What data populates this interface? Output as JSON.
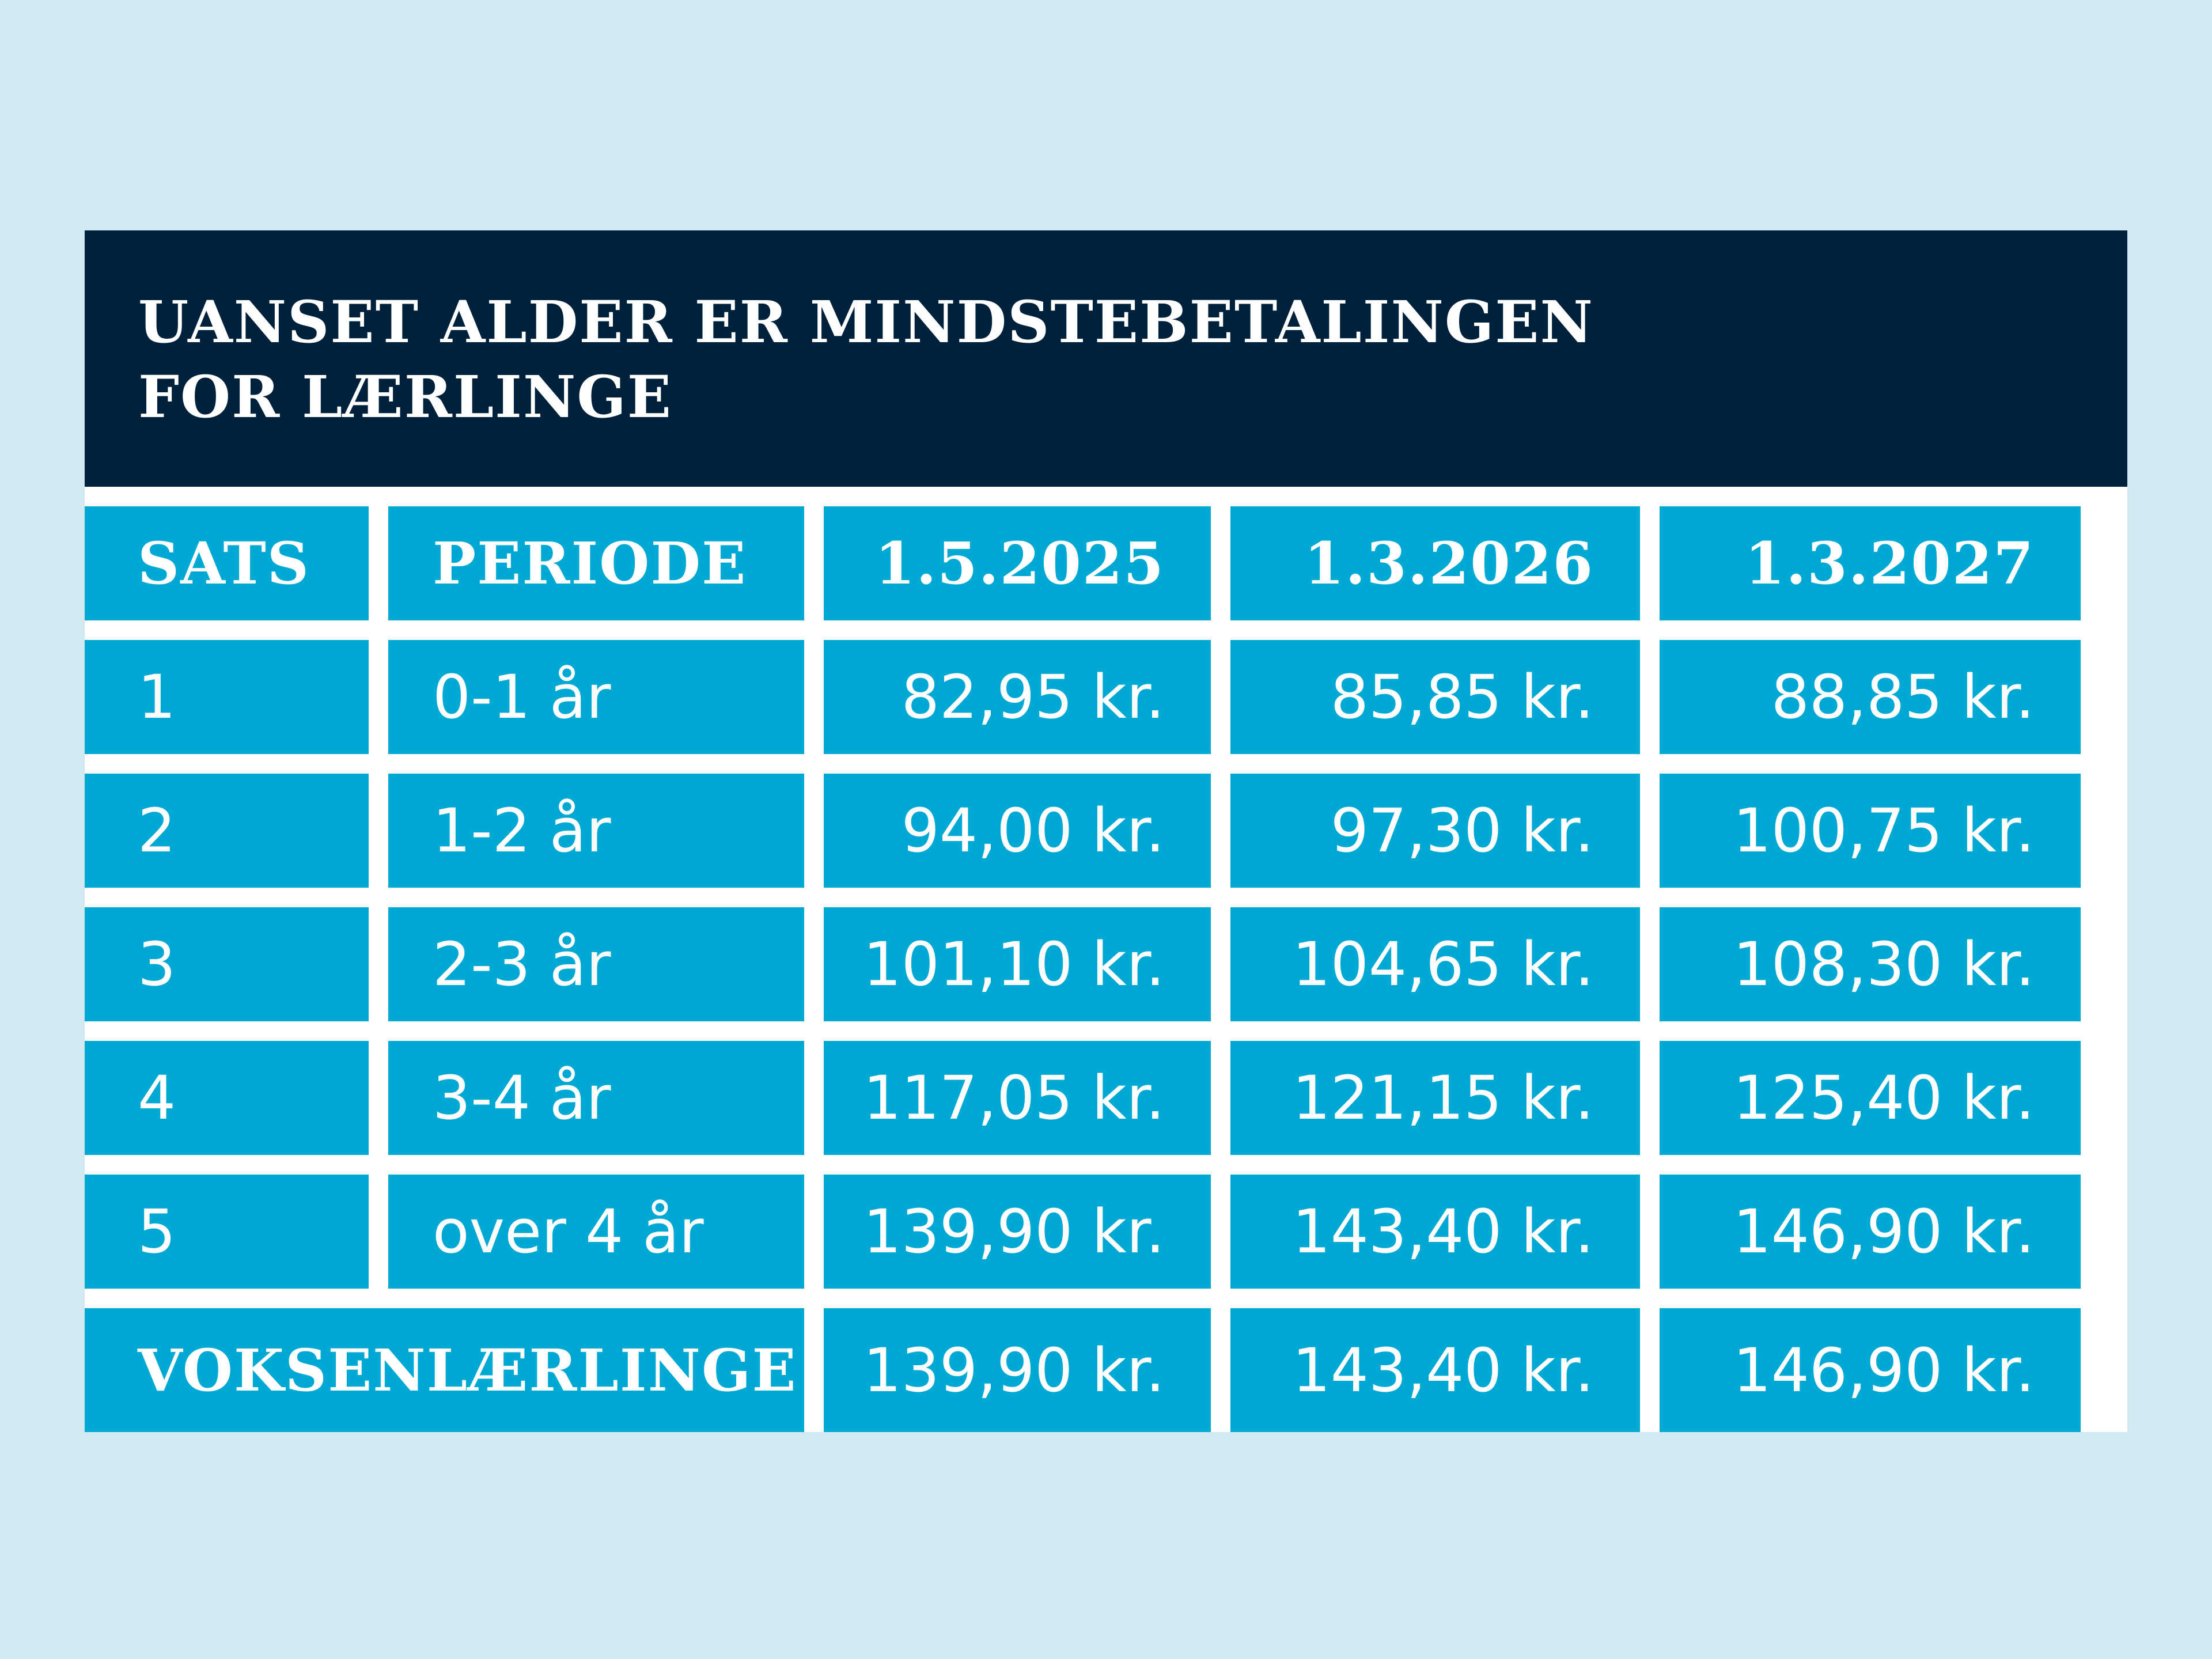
{
  "title": "UANSET ALDER ER MINDSTEBETALINGEN\nFOR LÆRLINGE",
  "colors": {
    "background": "#d1e9f0",
    "header_bg": "#00213c",
    "cell_bg": "#00a9d4",
    "text": "#ffffff"
  },
  "table": {
    "columns": [
      "SATS",
      "PERIODE",
      "1.5.2025",
      "1.3.2026",
      "1.3.2027"
    ],
    "rows": [
      {
        "sats": "1",
        "periode": "0-1 år",
        "v2025": "82,95 kr.",
        "v2026": "85,85 kr.",
        "v2027": "88,85 kr."
      },
      {
        "sats": "2",
        "periode": "1-2 år",
        "v2025": "94,00 kr.",
        "v2026": "97,30 kr.",
        "v2027": "100,75 kr."
      },
      {
        "sats": "3",
        "periode": "2-3 år",
        "v2025": "101,10 kr.",
        "v2026": "104,65 kr.",
        "v2027": "108,30 kr."
      },
      {
        "sats": "4",
        "periode": "3-4 år",
        "v2025": "117,05 kr.",
        "v2026": "121,15 kr.",
        "v2027": "125,40 kr."
      },
      {
        "sats": "5",
        "periode": "over 4 år",
        "v2025": "139,90 kr.",
        "v2026": "143,40 kr.",
        "v2027": "146,90 kr."
      }
    ],
    "total": {
      "label": "VOKSENLÆRLINGE",
      "v2025": "139,90 kr.",
      "v2026": "143,40 kr.",
      "v2027": "146,90 kr."
    }
  }
}
